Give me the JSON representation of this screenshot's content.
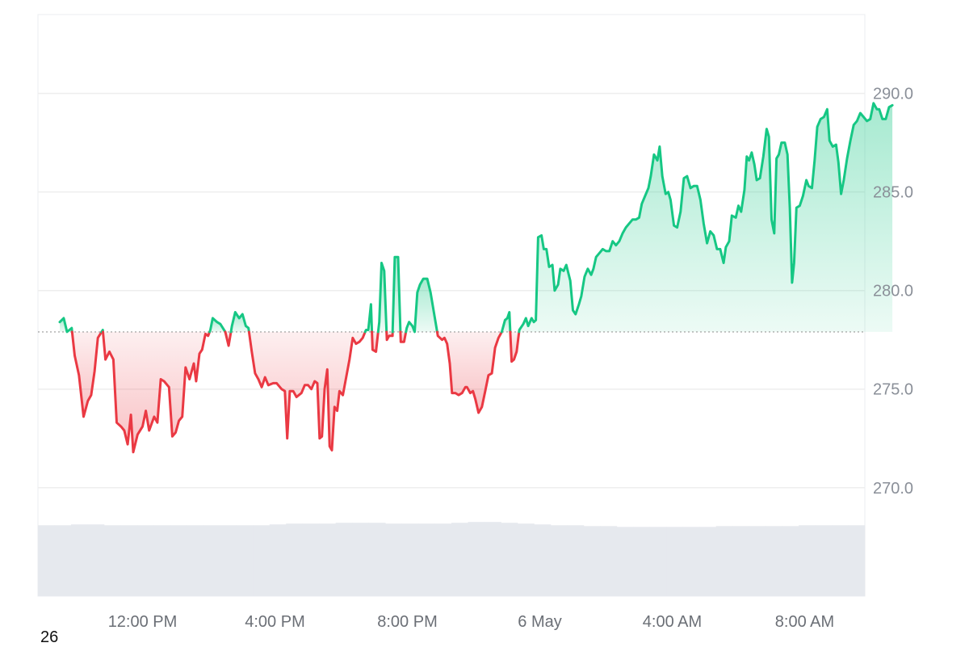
{
  "chart_data": {
    "type": "area",
    "baseline": 277.9,
    "ylim": [
      264.5,
      294.0
    ],
    "y_ticks": [
      {
        "value": 270,
        "label": "270.0"
      },
      {
        "value": 275,
        "label": "275.0"
      },
      {
        "value": 280,
        "label": "280.0"
      },
      {
        "value": 285,
        "label": "285.0"
      },
      {
        "value": 290,
        "label": "290.0"
      }
    ],
    "x_ticks": [
      {
        "t": 2.5,
        "label": "12:00 PM"
      },
      {
        "t": 6.5,
        "label": "4:00 PM"
      },
      {
        "t": 10.5,
        "label": "8:00 PM"
      },
      {
        "t": 14.5,
        "label": "6 May"
      },
      {
        "t": 18.5,
        "label": "4:00 AM"
      },
      {
        "t": 22.5,
        "label": "8:00 AM"
      }
    ],
    "xlim": [
      0,
      24.5
    ],
    "colors": {
      "up": "#16c784",
      "down": "#ea3943",
      "baseline": "#999999",
      "grid": "#eeeeee",
      "volume": "#e6e9ee"
    },
    "price": [
      [
        0.0,
        278.4
      ],
      [
        0.12,
        278.6
      ],
      [
        0.22,
        277.9
      ],
      [
        0.36,
        278.1
      ],
      [
        0.45,
        276.7
      ],
      [
        0.58,
        275.7
      ],
      [
        0.72,
        273.6
      ],
      [
        0.85,
        274.4
      ],
      [
        0.95,
        274.7
      ],
      [
        1.05,
        275.9
      ],
      [
        1.15,
        277.6
      ],
      [
        1.3,
        278.0
      ],
      [
        1.38,
        276.5
      ],
      [
        1.5,
        276.9
      ],
      [
        1.62,
        276.5
      ],
      [
        1.72,
        273.3
      ],
      [
        1.85,
        273.1
      ],
      [
        1.95,
        272.9
      ],
      [
        2.05,
        272.2
      ],
      [
        2.15,
        273.7
      ],
      [
        2.22,
        271.8
      ],
      [
        2.35,
        272.7
      ],
      [
        2.5,
        273.1
      ],
      [
        2.6,
        273.9
      ],
      [
        2.7,
        272.9
      ],
      [
        2.85,
        273.6
      ],
      [
        2.95,
        273.3
      ],
      [
        3.05,
        275.5
      ],
      [
        3.15,
        275.4
      ],
      [
        3.3,
        275.1
      ],
      [
        3.4,
        272.6
      ],
      [
        3.5,
        272.8
      ],
      [
        3.6,
        273.4
      ],
      [
        3.7,
        273.6
      ],
      [
        3.8,
        276.1
      ],
      [
        3.92,
        275.5
      ],
      [
        4.0,
        276.0
      ],
      [
        4.05,
        276.3
      ],
      [
        4.12,
        275.4
      ],
      [
        4.22,
        276.8
      ],
      [
        4.3,
        277.0
      ],
      [
        4.4,
        277.8
      ],
      [
        4.48,
        277.7
      ],
      [
        4.55,
        278.0
      ],
      [
        4.62,
        278.6
      ],
      [
        4.75,
        278.4
      ],
      [
        4.85,
        278.3
      ],
      [
        5.0,
        277.9
      ],
      [
        5.1,
        277.2
      ],
      [
        5.2,
        278.2
      ],
      [
        5.3,
        278.9
      ],
      [
        5.42,
        278.6
      ],
      [
        5.52,
        278.8
      ],
      [
        5.62,
        278.2
      ],
      [
        5.7,
        278.1
      ],
      [
        5.8,
        276.9
      ],
      [
        5.9,
        275.8
      ],
      [
        6.0,
        275.5
      ],
      [
        6.1,
        275.1
      ],
      [
        6.2,
        275.6
      ],
      [
        6.3,
        275.2
      ],
      [
        6.45,
        275.3
      ],
      [
        6.55,
        275.3
      ],
      [
        6.7,
        275.0
      ],
      [
        6.8,
        274.9
      ],
      [
        6.87,
        272.5
      ],
      [
        6.95,
        274.9
      ],
      [
        7.05,
        274.9
      ],
      [
        7.15,
        274.6
      ],
      [
        7.3,
        274.8
      ],
      [
        7.4,
        275.2
      ],
      [
        7.5,
        275.2
      ],
      [
        7.6,
        275.0
      ],
      [
        7.7,
        275.4
      ],
      [
        7.78,
        275.3
      ],
      [
        7.85,
        272.5
      ],
      [
        7.92,
        272.6
      ],
      [
        8.0,
        275.0
      ],
      [
        8.08,
        276.0
      ],
      [
        8.15,
        272.1
      ],
      [
        8.22,
        271.9
      ],
      [
        8.3,
        274.1
      ],
      [
        8.38,
        273.9
      ],
      [
        8.45,
        274.9
      ],
      [
        8.55,
        274.7
      ],
      [
        8.65,
        275.6
      ],
      [
        8.75,
        276.5
      ],
      [
        8.85,
        277.6
      ],
      [
        8.95,
        277.3
      ],
      [
        9.05,
        277.4
      ],
      [
        9.15,
        277.6
      ],
      [
        9.25,
        278.0
      ],
      [
        9.32,
        278.0
      ],
      [
        9.4,
        279.3
      ],
      [
        9.45,
        277.0
      ],
      [
        9.55,
        276.9
      ],
      [
        9.65,
        278.4
      ],
      [
        9.72,
        281.4
      ],
      [
        9.8,
        281.0
      ],
      [
        9.88,
        277.5
      ],
      [
        9.95,
        277.7
      ],
      [
        10.05,
        277.7
      ],
      [
        10.12,
        281.7
      ],
      [
        10.22,
        281.7
      ],
      [
        10.3,
        277.4
      ],
      [
        10.4,
        277.4
      ],
      [
        10.48,
        278.1
      ],
      [
        10.55,
        278.4
      ],
      [
        10.65,
        278.2
      ],
      [
        10.72,
        277.9
      ],
      [
        10.8,
        279.9
      ],
      [
        10.88,
        280.3
      ],
      [
        10.98,
        280.6
      ],
      [
        11.1,
        280.6
      ],
      [
        11.2,
        279.9
      ],
      [
        11.3,
        278.9
      ],
      [
        11.42,
        277.7
      ],
      [
        11.55,
        277.5
      ],
      [
        11.62,
        277.6
      ],
      [
        11.7,
        277.3
      ],
      [
        11.78,
        276.3
      ],
      [
        11.85,
        274.8
      ],
      [
        11.95,
        274.8
      ],
      [
        12.05,
        274.7
      ],
      [
        12.15,
        274.8
      ],
      [
        12.25,
        275.1
      ],
      [
        12.3,
        275.1
      ],
      [
        12.4,
        274.8
      ],
      [
        12.48,
        274.9
      ],
      [
        12.55,
        274.5
      ],
      [
        12.65,
        273.8
      ],
      [
        12.75,
        274.1
      ],
      [
        12.85,
        274.9
      ],
      [
        12.95,
        275.7
      ],
      [
        13.05,
        275.8
      ],
      [
        13.15,
        277.1
      ],
      [
        13.25,
        277.6
      ],
      [
        13.35,
        277.9
      ],
      [
        13.45,
        278.5
      ],
      [
        13.52,
        278.6
      ],
      [
        13.58,
        278.9
      ],
      [
        13.65,
        276.4
      ],
      [
        13.72,
        276.5
      ],
      [
        13.8,
        276.9
      ],
      [
        13.88,
        278.0
      ],
      [
        14.0,
        278.3
      ],
      [
        14.08,
        278.6
      ],
      [
        14.15,
        278.2
      ],
      [
        14.25,
        278.6
      ],
      [
        14.32,
        278.4
      ],
      [
        14.38,
        278.5
      ],
      [
        14.45,
        282.7
      ],
      [
        14.55,
        282.8
      ],
      [
        14.62,
        282.1
      ],
      [
        14.7,
        282.1
      ],
      [
        14.78,
        281.2
      ],
      [
        14.88,
        281.3
      ],
      [
        14.95,
        280.0
      ],
      [
        15.05,
        280.3
      ],
      [
        15.12,
        281.1
      ],
      [
        15.22,
        281.0
      ],
      [
        15.3,
        281.3
      ],
      [
        15.42,
        280.5
      ],
      [
        15.5,
        279.0
      ],
      [
        15.58,
        278.8
      ],
      [
        15.68,
        279.3
      ],
      [
        15.75,
        279.7
      ],
      [
        15.85,
        280.7
      ],
      [
        15.95,
        281.1
      ],
      [
        16.05,
        280.8
      ],
      [
        16.12,
        281.1
      ],
      [
        16.2,
        281.7
      ],
      [
        16.3,
        281.9
      ],
      [
        16.4,
        282.1
      ],
      [
        16.5,
        282.0
      ],
      [
        16.6,
        282.0
      ],
      [
        16.7,
        282.5
      ],
      [
        16.8,
        282.3
      ],
      [
        16.9,
        282.5
      ],
      [
        17.0,
        282.9
      ],
      [
        17.1,
        283.2
      ],
      [
        17.2,
        283.4
      ],
      [
        17.3,
        283.6
      ],
      [
        17.4,
        283.6
      ],
      [
        17.5,
        283.7
      ],
      [
        17.58,
        284.4
      ],
      [
        17.68,
        284.8
      ],
      [
        17.78,
        285.2
      ],
      [
        17.85,
        285.8
      ],
      [
        17.95,
        286.9
      ],
      [
        18.05,
        286.6
      ],
      [
        18.12,
        287.3
      ],
      [
        18.2,
        285.8
      ],
      [
        18.3,
        284.9
      ],
      [
        18.38,
        285.0
      ],
      [
        18.45,
        284.6
      ],
      [
        18.55,
        283.3
      ],
      [
        18.65,
        283.2
      ],
      [
        18.75,
        284.0
      ],
      [
        18.85,
        285.7
      ],
      [
        18.95,
        285.8
      ],
      [
        19.05,
        285.2
      ],
      [
        19.15,
        285.3
      ],
      [
        19.25,
        285.3
      ],
      [
        19.35,
        284.6
      ],
      [
        19.45,
        283.4
      ],
      [
        19.55,
        282.4
      ],
      [
        19.65,
        283.0
      ],
      [
        19.75,
        282.8
      ],
      [
        19.85,
        282.1
      ],
      [
        19.95,
        282.1
      ],
      [
        20.05,
        281.4
      ],
      [
        20.12,
        282.2
      ],
      [
        20.22,
        282.5
      ],
      [
        20.3,
        283.8
      ],
      [
        20.42,
        283.7
      ],
      [
        20.5,
        284.3
      ],
      [
        20.58,
        284.0
      ],
      [
        20.68,
        285.1
      ],
      [
        20.75,
        286.8
      ],
      [
        20.82,
        286.6
      ],
      [
        20.9,
        287.0
      ],
      [
        20.98,
        286.4
      ],
      [
        21.05,
        285.6
      ],
      [
        21.15,
        285.7
      ],
      [
        21.25,
        286.8
      ],
      [
        21.35,
        288.2
      ],
      [
        21.42,
        287.8
      ],
      [
        21.5,
        283.6
      ],
      [
        21.58,
        282.9
      ],
      [
        21.65,
        286.7
      ],
      [
        21.72,
        286.9
      ],
      [
        21.8,
        287.5
      ],
      [
        21.9,
        287.5
      ],
      [
        21.98,
        286.9
      ],
      [
        22.05,
        284.2
      ],
      [
        22.12,
        280.4
      ],
      [
        22.18,
        281.4
      ],
      [
        22.25,
        284.2
      ],
      [
        22.35,
        284.3
      ],
      [
        22.45,
        284.8
      ],
      [
        22.55,
        285.6
      ],
      [
        22.62,
        285.3
      ],
      [
        22.72,
        285.2
      ],
      [
        22.8,
        286.6
      ],
      [
        22.88,
        288.3
      ],
      [
        22.98,
        288.7
      ],
      [
        23.08,
        288.8
      ],
      [
        23.18,
        289.2
      ],
      [
        23.25,
        287.6
      ],
      [
        23.35,
        287.3
      ],
      [
        23.45,
        287.4
      ],
      [
        23.52,
        286.5
      ],
      [
        23.6,
        284.9
      ],
      [
        23.68,
        285.6
      ],
      [
        23.78,
        286.7
      ],
      [
        23.88,
        287.6
      ],
      [
        23.98,
        288.4
      ],
      [
        24.08,
        288.6
      ],
      [
        24.18,
        289.0
      ],
      [
        24.28,
        288.8
      ],
      [
        24.38,
        288.6
      ],
      [
        24.48,
        288.7
      ],
      [
        24.58,
        289.5
      ],
      [
        24.68,
        289.2
      ],
      [
        24.75,
        289.2
      ],
      [
        24.85,
        288.7
      ],
      [
        24.95,
        288.7
      ],
      [
        25.05,
        289.3
      ],
      [
        25.15,
        289.4
      ]
    ],
    "volume_relative": [
      0.86,
      0.86,
      0.87,
      0.87,
      0.86,
      0.86,
      0.86,
      0.86,
      0.86,
      0.86,
      0.86,
      0.86,
      0.86,
      0.86,
      0.87,
      0.88,
      0.88,
      0.88,
      0.89,
      0.89,
      0.89,
      0.88,
      0.88,
      0.88,
      0.88,
      0.89,
      0.9,
      0.9,
      0.89,
      0.88,
      0.87,
      0.86,
      0.86,
      0.85,
      0.85,
      0.84,
      0.84,
      0.84,
      0.84,
      0.84,
      0.84,
      0.85,
      0.85,
      0.85,
      0.85,
      0.85,
      0.86,
      0.86,
      0.86,
      0.86
    ]
  },
  "corner_label": "26"
}
